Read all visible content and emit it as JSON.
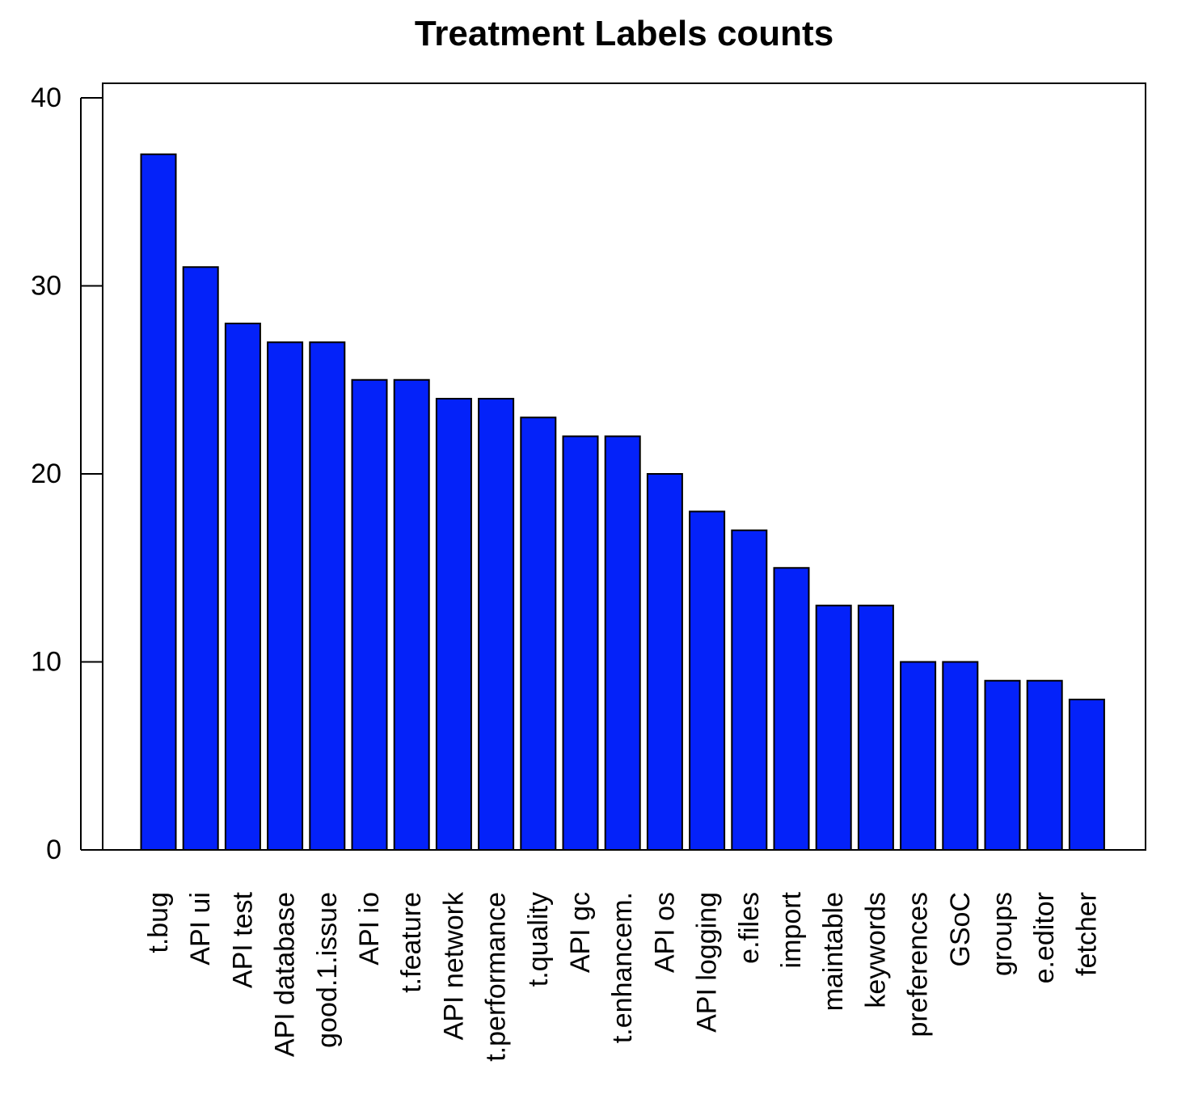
{
  "chart_data": {
    "type": "bar",
    "title": "Treatment Labels counts",
    "xlabel": "",
    "ylabel": "",
    "ylim": [
      0,
      40
    ],
    "yticks": [
      0,
      10,
      20,
      30,
      40
    ],
    "grid": false,
    "legend": "none",
    "bar_color": "#0422F9",
    "bar_edge_color": "#000000",
    "categories": [
      "t.bug",
      "API ui",
      "API test",
      "API database",
      "good.1.issue",
      "API io",
      "t.feature",
      "API network",
      "t.performance",
      "t.quality",
      "API gc",
      "t.enhancem.",
      "API os",
      "API logging",
      "e.files",
      "import",
      "maintable",
      "keywords",
      "preferences",
      "GSoC",
      "groups",
      "e.editor",
      "fetcher"
    ],
    "values": [
      37,
      31,
      28,
      27,
      27,
      25,
      25,
      24,
      24,
      23,
      22,
      22,
      20,
      18,
      17,
      15,
      13,
      13,
      10,
      10,
      9,
      9,
      8
    ]
  }
}
